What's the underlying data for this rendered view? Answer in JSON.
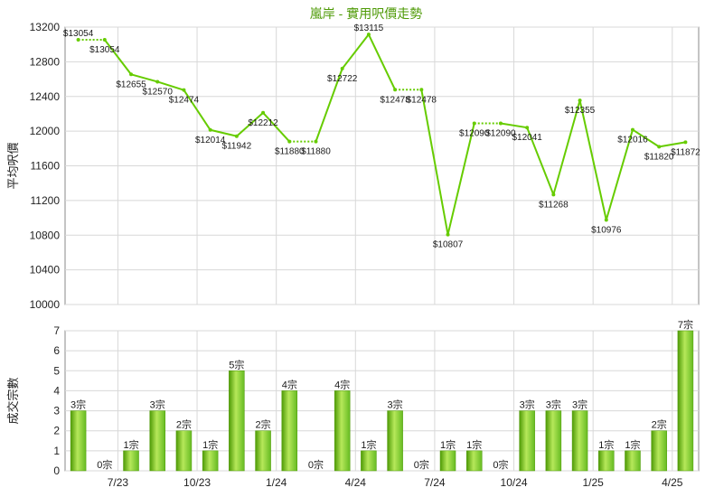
{
  "title": "嵐岸 - 實用呎價走勢",
  "colors": {
    "line": "#66cc00",
    "bar": "#66bb22",
    "bar_dark": "#4e9a06",
    "grid": "#d8d8d8",
    "axis": "#888888"
  },
  "chart_data": [
    {
      "type": "line",
      "title": "嵐岸 - 實用呎價走勢",
      "ylabel": "平均呎價",
      "ylim": [
        10000,
        13200
      ],
      "yticks": [
        10000,
        10400,
        10800,
        11200,
        11600,
        12000,
        12400,
        12800,
        13200
      ],
      "grid": true,
      "values": [
        13054,
        13054,
        12655,
        12570,
        12474,
        12014,
        11942,
        12212,
        11880,
        11880,
        12722,
        13115,
        12478,
        12478,
        10807,
        12090,
        12090,
        12041,
        11268,
        12355,
        10976,
        12016,
        11820,
        11872
      ],
      "labels": [
        "$13054",
        "$13054",
        "$12655",
        "$12570",
        "$12474",
        "$12014",
        "$11942",
        "$12212",
        "$11880",
        "$11880",
        "$12722",
        "$13115",
        "$12478",
        "$12478",
        "$10807",
        "$12090",
        "$12090",
        "$12041",
        "$11268",
        "$12355",
        "$10976",
        "$12016",
        "$11820",
        "$11872"
      ],
      "estimated_flags": [
        false,
        true,
        false,
        false,
        false,
        false,
        false,
        false,
        false,
        true,
        false,
        false,
        false,
        true,
        false,
        false,
        true,
        false,
        false,
        false,
        false,
        false,
        false,
        false
      ]
    },
    {
      "type": "bar",
      "ylabel": "成交宗數",
      "ylim": [
        0,
        7
      ],
      "yticks": [
        0,
        1,
        2,
        3,
        4,
        5,
        6,
        7
      ],
      "grid": true,
      "values": [
        3,
        0,
        1,
        3,
        2,
        1,
        5,
        2,
        4,
        0,
        4,
        1,
        3,
        0,
        1,
        1,
        0,
        3,
        3,
        3,
        1,
        1,
        2,
        7
      ],
      "labels": [
        "3宗",
        "0宗",
        "1宗",
        "3宗",
        "2宗",
        "1宗",
        "5宗",
        "2宗",
        "4宗",
        "0宗",
        "4宗",
        "1宗",
        "3宗",
        "0宗",
        "1宗",
        "1宗",
        "0宗",
        "3宗",
        "3宗",
        "3宗",
        "1宗",
        "1宗",
        "2宗",
        "7宗"
      ],
      "xticks": [
        "7/23",
        "10/23",
        "1/24",
        "4/24",
        "7/24",
        "10/24",
        "1/25",
        "4/25"
      ]
    }
  ]
}
